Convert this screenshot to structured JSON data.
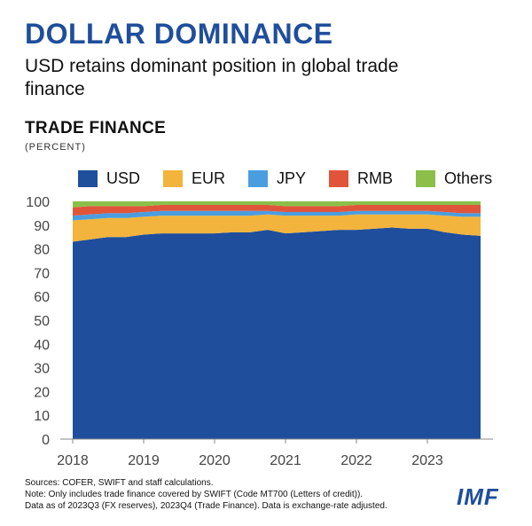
{
  "header": {
    "title": "DOLLAR DOMINANCE",
    "subtitle": "USD retains dominant position in global trade finance"
  },
  "chart_header": {
    "title": "TRADE FINANCE",
    "unit": "(PERCENT)"
  },
  "colors": {
    "USD": "#1f4e9c",
    "EUR": "#f2b43c",
    "JPY": "#4a9ee0",
    "RMB": "#e0553a",
    "Others": "#8cbf4a"
  },
  "chart_data": {
    "type": "area",
    "stacked": true,
    "ylim": [
      0,
      100
    ],
    "yticks": [
      0,
      10,
      20,
      30,
      40,
      50,
      60,
      70,
      80,
      90,
      100
    ],
    "xticks": [
      "2018",
      "2019",
      "2020",
      "2021",
      "2022",
      "2023"
    ],
    "x": [
      "2018Q1",
      "2018Q2",
      "2018Q3",
      "2018Q4",
      "2019Q1",
      "2019Q2",
      "2019Q3",
      "2019Q4",
      "2020Q1",
      "2020Q2",
      "2020Q3",
      "2020Q4",
      "2021Q1",
      "2021Q2",
      "2021Q3",
      "2021Q4",
      "2022Q1",
      "2022Q2",
      "2022Q3",
      "2022Q4",
      "2023Q1",
      "2023Q2",
      "2023Q3",
      "2023Q4"
    ],
    "grid": false,
    "legend_position": "top",
    "series": [
      {
        "name": "USD",
        "values": [
          83,
          84,
          85,
          85,
          86,
          86.5,
          86.5,
          86.5,
          86.5,
          87,
          87,
          88,
          86.5,
          87,
          87.5,
          88,
          88,
          88.5,
          89,
          88.5,
          88.5,
          87,
          86,
          85.5
        ]
      },
      {
        "name": "EUR",
        "values": [
          9,
          8.5,
          8,
          8,
          7.5,
          7.5,
          7.5,
          7.5,
          7.5,
          7,
          7,
          6.5,
          7.5,
          7,
          6.5,
          6,
          6.5,
          6,
          5.5,
          6,
          6,
          7,
          7.5,
          8
        ]
      },
      {
        "name": "JPY",
        "values": [
          2,
          2,
          2,
          2,
          2,
          2,
          2,
          2,
          2,
          2,
          2,
          1.5,
          1.5,
          1.5,
          1.5,
          1.5,
          1.5,
          1.5,
          1.5,
          1.5,
          1.5,
          1.5,
          1.5,
          1.5
        ]
      },
      {
        "name": "RMB",
        "values": [
          3.5,
          3.5,
          3,
          3,
          2.5,
          2.5,
          2.5,
          2.5,
          2.5,
          2.5,
          2.5,
          2.5,
          2.5,
          2.5,
          2.5,
          2.5,
          2.5,
          2.5,
          2.5,
          2.5,
          2.5,
          3,
          3.5,
          3.5
        ]
      },
      {
        "name": "Others",
        "values": [
          2.5,
          2,
          2,
          2,
          2,
          1.5,
          1.5,
          1.5,
          1.5,
          1.5,
          1.5,
          1.5,
          2,
          2,
          2,
          2,
          1.5,
          1.5,
          1.5,
          1.5,
          1.5,
          1.5,
          1.5,
          1.5
        ]
      }
    ]
  },
  "footer": {
    "note1": "Sources: COFER, SWIFT and staff calculations.",
    "note2": "Note: Only includes trade finance covered by SWIFT (Code MT700 (Letters of credit)).",
    "note3": "Data as of 2023Q3 (FX reserves), 2023Q4 (Trade Finance). Data is exchange-rate adjusted.",
    "logo": "IMF"
  }
}
